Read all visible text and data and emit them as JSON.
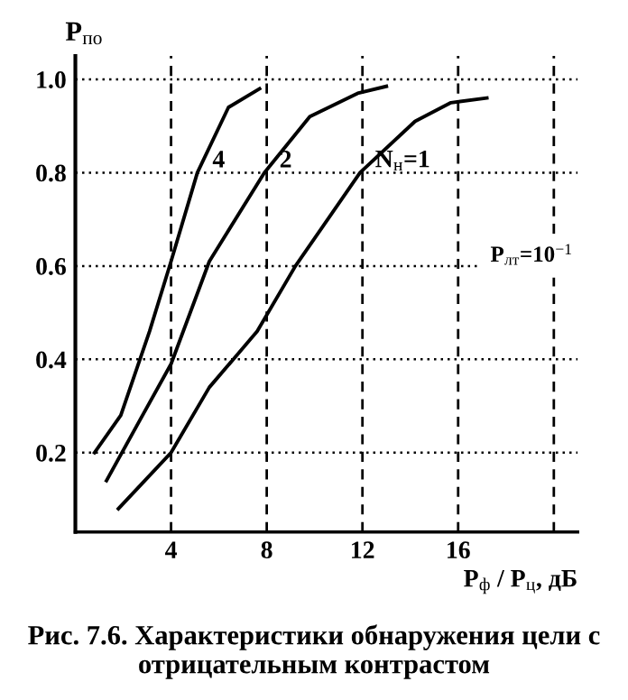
{
  "chart_data": {
    "type": "line",
    "title": "Рис. 7.6. Характеристики обнаружения цели с отрицательным контрастом",
    "xlabel": "P$_{ф}$ / P$_{ц}$, дБ",
    "ylabel": "P$_{по}$",
    "annotations": [
      "P$_{лт}$=10$^{−1}$"
    ],
    "series": [
      {
        "name": "4",
        "color": "#000000",
        "x": [
          0.8,
          1.9,
          3.1,
          4.0,
          5.1,
          6.4,
          7.7
        ],
        "values": [
          0.2,
          0.28,
          0.46,
          0.61,
          0.8,
          0.94,
          0.98
        ]
      },
      {
        "name": "2",
        "color": "#000000",
        "x": [
          1.3,
          2.7,
          4.0,
          5.6,
          7.9,
          9.8,
          11.8,
          13.0
        ],
        "values": [
          0.14,
          0.27,
          0.39,
          0.61,
          0.8,
          0.92,
          0.97,
          0.985
        ]
      },
      {
        "name": "N$_{н}$=1",
        "color": "#000000",
        "x": [
          1.8,
          4.0,
          5.6,
          7.6,
          9.2,
          11.9,
          14.2,
          15.7,
          17.2
        ],
        "values": [
          0.08,
          0.2,
          0.34,
          0.46,
          0.6,
          0.8,
          0.91,
          0.95,
          0.96
        ]
      }
    ],
    "xlim": [
      0,
      21
    ],
    "xticks": [
      4,
      8,
      12,
      16,
      {
        "value": 20,
        "label": null
      }
    ],
    "ylim": [
      0.03,
      1.05
    ],
    "yticks": [
      0.2,
      0.4,
      0.6,
      0.8,
      {
        "value": 1.0,
        "label": "1.0"
      }
    ],
    "grid": true,
    "marker": "none",
    "line_style": "solid"
  }
}
